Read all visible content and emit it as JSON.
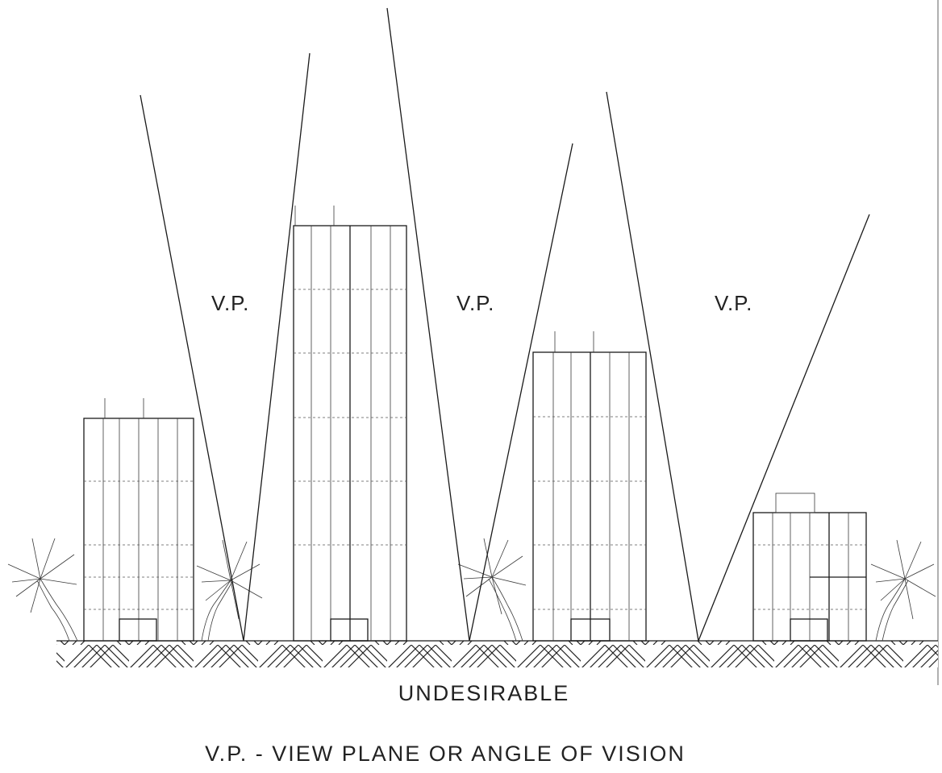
{
  "labels": {
    "vp_left": "V.P.",
    "vp_middle": "V.P.",
    "vp_right": "V.P."
  },
  "caption": {
    "title": "UNDESIRABLE",
    "legend": "V.P. - VIEW PLANE OR ANGLE OF VISION"
  }
}
